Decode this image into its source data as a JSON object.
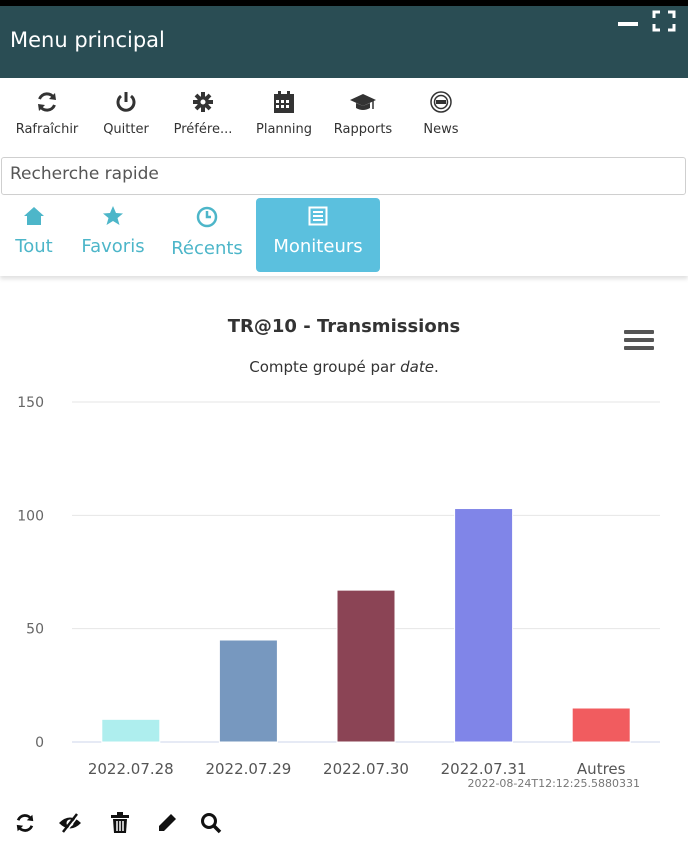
{
  "window": {
    "title": "Menu principal"
  },
  "toolbar": {
    "items": [
      {
        "label": "Rafraîchir",
        "icon": "refresh-icon"
      },
      {
        "label": "Quitter",
        "icon": "power-icon"
      },
      {
        "label": "Préfére...",
        "icon": "gear-icon"
      },
      {
        "label": "Planning",
        "icon": "calendar-icon"
      },
      {
        "label": "Rapports",
        "icon": "graduation-cap-icon"
      },
      {
        "label": "News",
        "icon": "news-icon"
      }
    ]
  },
  "search": {
    "placeholder": "Recherche rapide"
  },
  "tabs": [
    {
      "label": "Tout",
      "icon": "home-icon",
      "active": false
    },
    {
      "label": "Favoris",
      "icon": "star-icon",
      "active": false
    },
    {
      "label": "Récents",
      "icon": "clock-icon",
      "active": false
    },
    {
      "label": "Moniteurs",
      "icon": "list-icon",
      "active": true
    }
  ],
  "chart_data": {
    "type": "bar",
    "title": "TR@10 - Transmissions",
    "subtitle_prefix": "Compte groupé par ",
    "subtitle_em": "date",
    "subtitle_suffix": ".",
    "categories": [
      "2022.07.28",
      "2022.07.29",
      "2022.07.30",
      "2022.07.31",
      "Autres"
    ],
    "values": [
      10,
      45,
      67,
      103,
      15
    ],
    "colors": [
      "#aeeeee",
      "#7798bf",
      "#8b4455",
      "#8085e8",
      "#f15c5f"
    ],
    "ylim": [
      0,
      150
    ],
    "yticks": [
      0,
      50,
      100,
      150
    ],
    "grid": true,
    "legend": "none",
    "annotation": "2022-08-24T12:12:25.5880331"
  },
  "bottom_tools": [
    {
      "icon": "refresh-icon"
    },
    {
      "icon": "eye-slash-icon"
    },
    {
      "icon": "trash-icon"
    },
    {
      "icon": "pencil-icon"
    },
    {
      "icon": "search-icon"
    }
  ]
}
